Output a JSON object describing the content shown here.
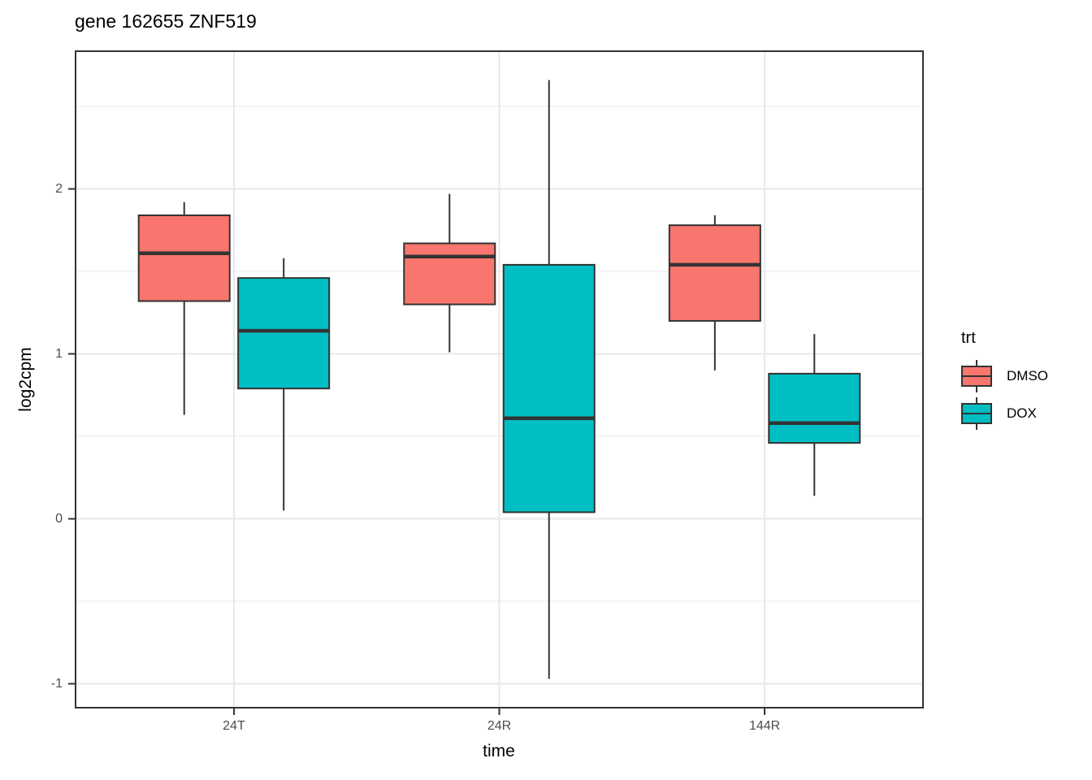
{
  "chart_data": {
    "type": "boxplot",
    "title": "gene 162655 ZNF519",
    "xlabel": "time",
    "ylabel": "log2cpm",
    "categories": [
      "24T",
      "24R",
      "144R"
    ],
    "y_ticks": [
      -1,
      0,
      1,
      2
    ],
    "y_minor_gridlines": [
      -0.5,
      0.5,
      1.5,
      2.5
    ],
    "ylim": [
      -1.15,
      2.84
    ],
    "grid": "on",
    "legend_position": "right",
    "legend_title": "trt",
    "series": [
      {
        "name": "DMSO",
        "color": "#F8766D",
        "boxes": [
          {
            "category": "24T",
            "whisker_low": 0.63,
            "q1": 1.32,
            "median": 1.61,
            "q3": 1.84,
            "whisker_high": 1.92
          },
          {
            "category": "24R",
            "whisker_low": 1.01,
            "q1": 1.3,
            "median": 1.59,
            "q3": 1.67,
            "whisker_high": 1.97
          },
          {
            "category": "144R",
            "whisker_low": 0.9,
            "q1": 1.2,
            "median": 1.54,
            "q3": 1.78,
            "whisker_high": 1.84
          }
        ]
      },
      {
        "name": "DOX",
        "color": "#00BFC4",
        "boxes": [
          {
            "category": "24T",
            "whisker_low": 0.05,
            "q1": 0.79,
            "median": 1.14,
            "q3": 1.46,
            "whisker_high": 1.58
          },
          {
            "category": "24R",
            "whisker_low": -0.97,
            "q1": 0.04,
            "median": 0.61,
            "q3": 1.54,
            "whisker_high": 2.66
          },
          {
            "category": "144R",
            "whisker_low": 0.14,
            "q1": 0.46,
            "median": 0.58,
            "q3": 0.88,
            "whisker_high": 1.12
          }
        ]
      }
    ],
    "colors": {
      "box_outline": "#333333",
      "panel_border": "#333333",
      "tick_mark": "#333333",
      "tick_label": "#4D4D4D",
      "grid_major": "#E8E8E8",
      "grid_minor": "#F1F1F1",
      "background": "#FFFFFF"
    }
  }
}
